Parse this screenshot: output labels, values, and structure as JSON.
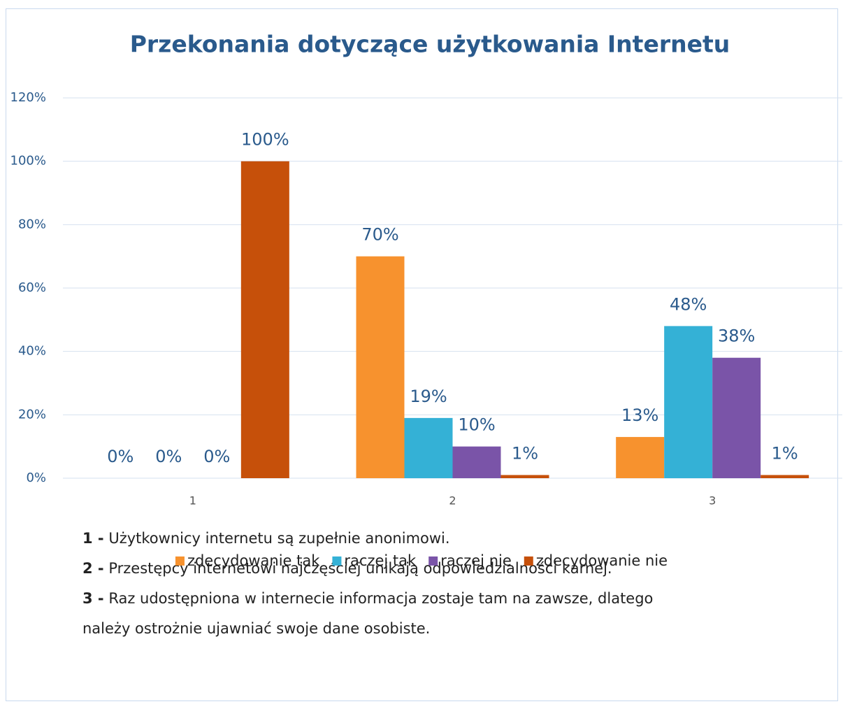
{
  "chart_data": {
    "type": "bar",
    "title": "Przekonania dotyczące użytkowania Internetu",
    "categories": [
      "1",
      "2",
      "3"
    ],
    "series": [
      {
        "name": "zdecydowanie tak",
        "color": "#f7922e",
        "values": [
          0,
          70,
          13
        ],
        "value_labels": [
          "0%",
          "70%",
          "13%"
        ]
      },
      {
        "name": "raczej tak",
        "color": "#34b1d6",
        "values": [
          0,
          19,
          48
        ],
        "value_labels": [
          "0%",
          "19%",
          "48%"
        ]
      },
      {
        "name": "raczej nie",
        "color": "#7a54a8",
        "values": [
          0,
          10,
          38
        ],
        "value_labels": [
          "0%",
          "10%",
          "38%"
        ]
      },
      {
        "name": "zdecydowanie nie",
        "color": "#c6500a",
        "values": [
          100,
          1,
          1
        ],
        "value_labels": [
          "100%",
          "1%",
          "1%"
        ]
      }
    ],
    "ylim": [
      0,
      120
    ],
    "yticks": [
      {
        "value": 0,
        "label": "0%"
      },
      {
        "value": 20,
        "label": "20%"
      },
      {
        "value": 40,
        "label": "40%"
      },
      {
        "value": 60,
        "label": "60%"
      },
      {
        "value": 80,
        "label": "80%"
      },
      {
        "value": 100,
        "label": "100%"
      },
      {
        "value": 120,
        "label": "120%"
      }
    ],
    "grid": true,
    "legend": "bottom",
    "notes": [
      {
        "label": "1 -",
        "text": "Użytkownicy internetu są zupełnie anonimowi."
      },
      {
        "label": "2 -",
        "text": "Przestępcy internetowi najczęściej unikają odpowiedzialności karnej."
      },
      {
        "label": "3 -",
        "text": "Raz udostępniona w internecie informacja zostaje tam na zawsze, dlatego"
      },
      {
        "text": "należy ostrożnie ujawniać swoje dane osobiste."
      }
    ]
  }
}
